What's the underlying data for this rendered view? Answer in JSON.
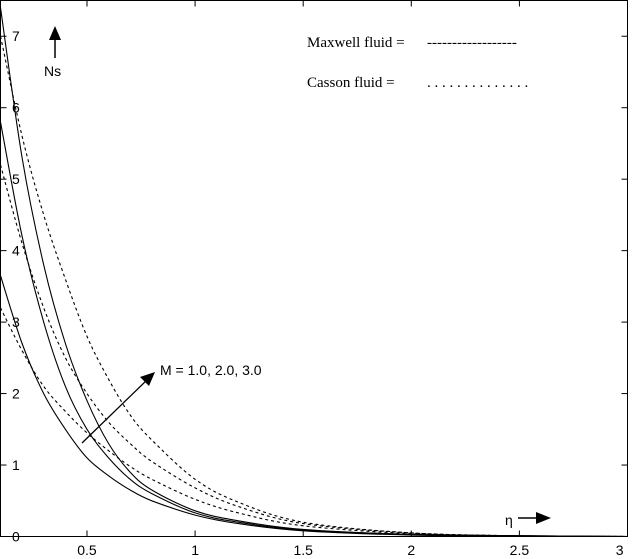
{
  "chart_data": {
    "type": "line",
    "title": "",
    "xlabel": "η",
    "ylabel": "Ns",
    "xlim": [
      0.1,
      3.0
    ],
    "ylim": [
      0,
      7.5
    ],
    "x_ticks": [
      "0.5",
      "1",
      "1.5",
      "2",
      "2.5",
      "3"
    ],
    "y_ticks": [
      "0",
      "1",
      "2",
      "3",
      "4",
      "5",
      "6",
      "7"
    ],
    "grid": false,
    "legend_position": "top-right",
    "legend": [
      {
        "label": "Maxwell fluid = ",
        "sample": "------------------"
      },
      {
        "label": "Casson fluid = ",
        "sample": ". . . . . . . . . . . . . ."
      }
    ],
    "annotation": "M = 1.0, 2.0, 3.0",
    "series": [
      {
        "style": "solid",
        "x": [
          0.1,
          0.2,
          0.3,
          0.4,
          0.5,
          0.6,
          0.7,
          0.8,
          1.0,
          1.2,
          1.5,
          2.0,
          2.5,
          3.0
        ],
        "y": [
          7.4,
          5.3,
          3.8,
          2.7,
          1.9,
          1.3,
          0.9,
          0.65,
          0.36,
          0.22,
          0.1,
          0.03,
          0.01,
          0.0
        ]
      },
      {
        "style": "solid",
        "x": [
          0.1,
          0.2,
          0.3,
          0.4,
          0.5,
          0.6,
          0.7,
          0.8,
          1.0,
          1.2,
          1.5,
          2.0,
          2.5,
          3.0
        ],
        "y": [
          5.8,
          4.2,
          3.0,
          2.1,
          1.5,
          1.1,
          0.8,
          0.6,
          0.33,
          0.2,
          0.09,
          0.03,
          0.01,
          0.0
        ]
      },
      {
        "style": "solid",
        "x": [
          0.1,
          0.2,
          0.3,
          0.4,
          0.5,
          0.6,
          0.7,
          0.8,
          1.0,
          1.2,
          1.5,
          2.0,
          2.5,
          3.0
        ],
        "y": [
          3.65,
          2.7,
          2.0,
          1.5,
          1.1,
          0.85,
          0.65,
          0.5,
          0.3,
          0.18,
          0.08,
          0.02,
          0.01,
          0.0
        ]
      },
      {
        "style": "dotted",
        "x": [
          0.1,
          0.2,
          0.3,
          0.4,
          0.5,
          0.6,
          0.7,
          0.8,
          1.0,
          1.2,
          1.5,
          2.0,
          2.5,
          3.0
        ],
        "y": [
          7.0,
          5.6,
          4.5,
          3.6,
          2.8,
          2.2,
          1.7,
          1.35,
          0.8,
          0.48,
          0.2,
          0.05,
          0.01,
          0.0
        ]
      },
      {
        "style": "dotted",
        "x": [
          0.1,
          0.2,
          0.3,
          0.4,
          0.5,
          0.6,
          0.7,
          0.8,
          1.0,
          1.2,
          1.5,
          2.0,
          2.5,
          3.0
        ],
        "y": [
          5.2,
          4.1,
          3.2,
          2.5,
          2.0,
          1.6,
          1.3,
          1.05,
          0.68,
          0.42,
          0.18,
          0.05,
          0.01,
          0.0
        ]
      },
      {
        "style": "dotted",
        "x": [
          0.1,
          0.2,
          0.3,
          0.4,
          0.5,
          0.6,
          0.7,
          0.8,
          1.0,
          1.2,
          1.5,
          2.0,
          2.5,
          3.0
        ],
        "y": [
          3.2,
          2.6,
          2.1,
          1.75,
          1.45,
          1.2,
          0.98,
          0.8,
          0.52,
          0.33,
          0.15,
          0.04,
          0.01,
          0.0
        ]
      }
    ]
  }
}
